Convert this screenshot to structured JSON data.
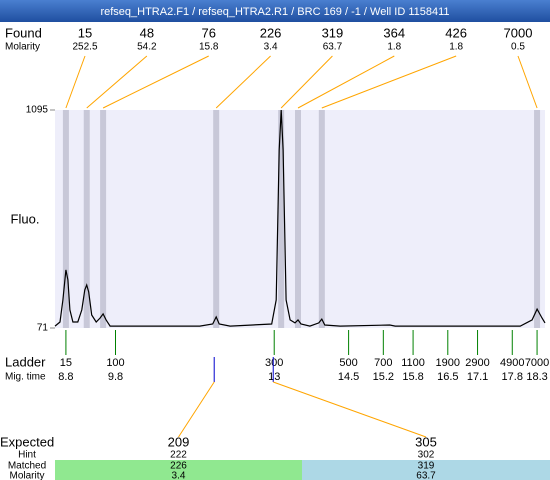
{
  "chart_data": {
    "type": "electropherogram",
    "title": "refseq_HTRA2.F1 / refseq_HTRA2.R1 / BRC 169 / -1 / Well ID 1158411",
    "ylabel": "Fluo.",
    "color": "#000000",
    "xlim": [
      8.58,
      18.46
    ],
    "ylim": [
      71,
      1095
    ],
    "yticks": [
      71,
      1095
    ],
    "x": [
      8.58,
      8.68,
      8.74,
      8.8,
      8.84,
      8.88,
      8.94,
      9.04,
      9.12,
      9.18,
      9.22,
      9.26,
      9.32,
      9.41,
      9.49,
      9.55,
      9.61,
      9.69,
      10.49,
      11.5,
      11.76,
      11.83,
      11.89,
      12.11,
      12.95,
      13.04,
      13.1,
      13.14,
      13.18,
      13.24,
      13.32,
      13.42,
      13.48,
      13.54,
      13.72,
      13.9,
      13.96,
      14.02,
      14.33,
      15.33,
      15.44,
      17.96,
      18.2,
      18.3,
      18.4,
      18.46
    ],
    "values": [
      80,
      99,
      203,
      344,
      297,
      156,
      99,
      99,
      156,
      250,
      273,
      240,
      132,
      99,
      118,
      137,
      109,
      80,
      80,
      80,
      90,
      123,
      90,
      80,
      90,
      203,
      908,
      1095,
      908,
      203,
      109,
      95,
      109,
      90,
      80,
      95,
      113,
      85,
      80,
      85,
      80,
      80,
      109,
      160,
      118,
      95
    ],
    "found": {
      "label": "Found",
      "molarity_label": "Molarity",
      "sizes": [
        15,
        48,
        76,
        226,
        319,
        364,
        426,
        7000
      ],
      "molarity": [
        252.5,
        54.2,
        15.8,
        3.4,
        63.7,
        1.8,
        1.8,
        0.5
      ],
      "x": [
        8.8,
        9.22,
        9.55,
        11.83,
        13.14,
        13.48,
        13.96,
        18.3
      ],
      "band_color": "#c8c8d8",
      "line_color": "#ffa500"
    },
    "ladder": {
      "label": "Ladder",
      "time_label": "Mig. time",
      "sizes": [
        15,
        100,
        300,
        500,
        700,
        1100,
        1900,
        2900,
        4900,
        7000
      ],
      "times": [
        8.8,
        9.8,
        13,
        14.5,
        15.2,
        15.8,
        16.5,
        17.1,
        17.8,
        18.3
      ],
      "color": "#008000"
    },
    "expected": {
      "label": "Expected",
      "hint_label": "Hint",
      "matched_label": "Matched",
      "molarity_label": "Molarity",
      "sizes": [
        209,
        305
      ],
      "hint": [
        222,
        302
      ],
      "matched": [
        226,
        319
      ],
      "molarity": [
        3.4,
        63.7
      ],
      "x": [
        11.79,
        12.98
      ],
      "colors": [
        "#90e890",
        "#add8e6"
      ],
      "tick_color": "#0000cc"
    }
  }
}
